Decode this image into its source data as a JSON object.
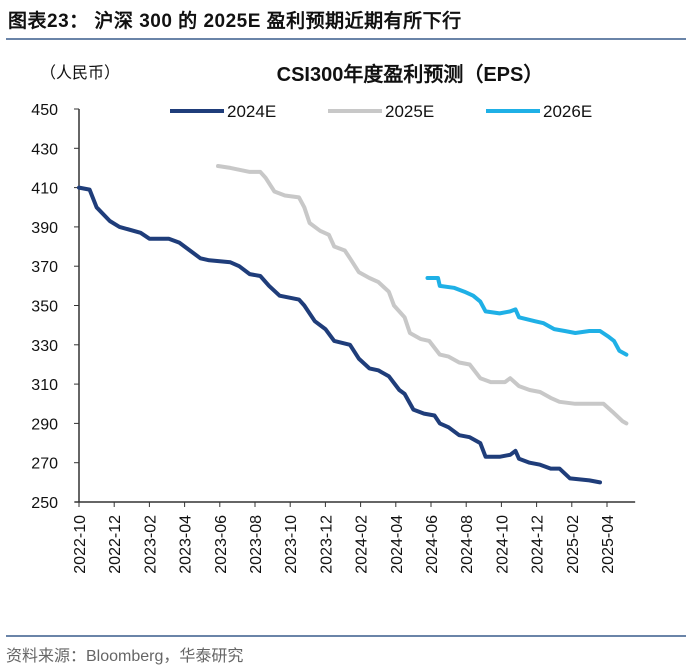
{
  "figure_title": "图表23： 沪深 300 的 2025E 盈利预期近期有所下行",
  "source": "资料来源：Bloomberg，华泰研究",
  "chart_data": {
    "type": "line",
    "title": "CSI300年度盈利预测（EPS）",
    "ylabel": "（人民币）",
    "xlabel": "",
    "x_units": "months since 2022-10",
    "ylim": [
      250,
      450
    ],
    "xlim": [
      0,
      31.6
    ],
    "yticks": [
      250,
      270,
      290,
      310,
      330,
      350,
      370,
      390,
      410,
      430,
      450
    ],
    "xtick_labels": [
      "2022-10",
      "2022-12",
      "2023-02",
      "2023-04",
      "2023-06",
      "2023-08",
      "2023-10",
      "2023-12",
      "2024-02",
      "2024-04",
      "2024-06",
      "2024-08",
      "2024-10",
      "2024-12",
      "2025-02",
      "2025-04"
    ],
    "grid": false,
    "legend_position": "top",
    "series": [
      {
        "name": "2024E",
        "color": "#1f3d7a",
        "x": [
          0,
          0.6,
          1,
          1.75,
          2.3,
          3.5,
          4,
          5.1,
          5.7,
          6.3,
          6.9,
          7.4,
          8.6,
          9.1,
          9.7,
          10.3,
          10.8,
          11.4,
          12.5,
          12.8,
          13.4,
          14,
          14.5,
          15.4,
          15.9,
          16.5,
          17,
          17.6,
          18.2,
          18.5,
          19,
          19.6,
          20.2,
          20.5,
          21,
          21.6,
          22.2,
          22.8,
          23.1,
          23.9,
          24.5,
          24.8,
          25,
          25.6,
          26.2,
          26.8,
          27.3,
          27.9,
          29,
          29.6
        ],
        "y": [
          410,
          409,
          400,
          393,
          390,
          387,
          384,
          384,
          382,
          378,
          374,
          373,
          372,
          370,
          366,
          365,
          360,
          355,
          353,
          350,
          342,
          338,
          332,
          330,
          323,
          318,
          317,
          314,
          307,
          305,
          297,
          295,
          294,
          290,
          288,
          284,
          283,
          280,
          273,
          273,
          274,
          276,
          272,
          270,
          269,
          267,
          267,
          262,
          261,
          260
        ]
      },
      {
        "name": "2025E",
        "color": "#c8c8c8",
        "x": [
          7.9,
          8.6,
          9.7,
          10.3,
          10.6,
          11.1,
          11.7,
          12.5,
          12.8,
          13.1,
          13.7,
          14.2,
          14.5,
          15.1,
          15.4,
          15.9,
          16.5,
          17,
          17.6,
          17.9,
          18.5,
          18.8,
          19.4,
          19.9,
          20.5,
          21,
          21.6,
          22.2,
          22.8,
          23.4,
          24.2,
          24.5,
          25,
          25.6,
          26.2,
          26.8,
          27.3,
          28.2,
          29,
          29.8,
          30.3,
          30.9,
          31.1
        ],
        "y": [
          421,
          420,
          418,
          418,
          415,
          408,
          406,
          405,
          400,
          392,
          388,
          386,
          380,
          378,
          374,
          367,
          364,
          362,
          357,
          350,
          344,
          336,
          333,
          332,
          325,
          324,
          321,
          320,
          313,
          311,
          311,
          313,
          309,
          307,
          306,
          303,
          301,
          300,
          300,
          300,
          296,
          291,
          290
        ]
      },
      {
        "name": "2026E",
        "color": "#1fb0e6",
        "x": [
          19.8,
          20.4,
          20.5,
          21.3,
          21.9,
          22.4,
          22.8,
          23.1,
          23.9,
          24.5,
          24.8,
          25,
          25.9,
          26.4,
          27,
          27.6,
          28.2,
          29,
          29.6,
          30.1,
          30.4,
          30.7,
          31.1
        ],
        "y": [
          364,
          364,
          360,
          359,
          357,
          355,
          352,
          347,
          346,
          347,
          348,
          344,
          342,
          341,
          338,
          337,
          336,
          337,
          337,
          334,
          332,
          327,
          325
        ]
      }
    ]
  }
}
